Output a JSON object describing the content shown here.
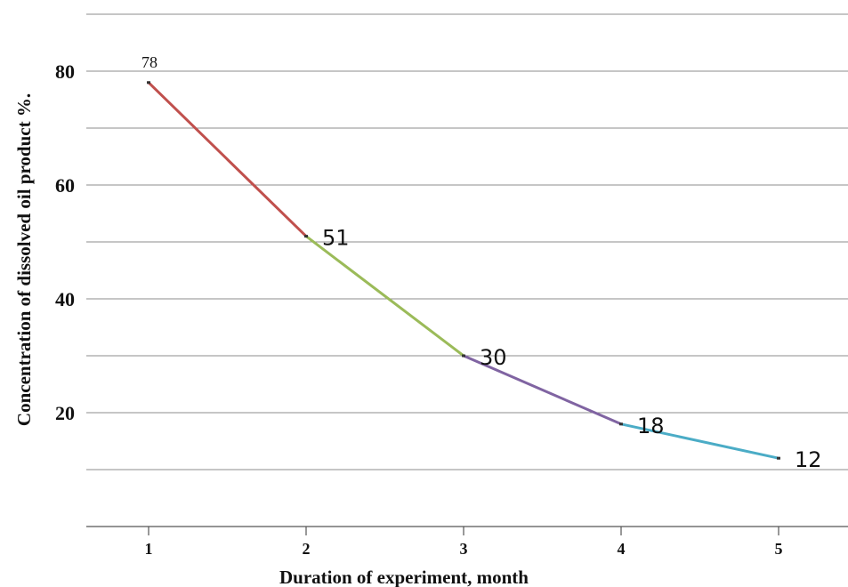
{
  "chart_data": {
    "type": "line",
    "x": [
      1,
      2,
      3,
      4,
      5
    ],
    "values": [
      78,
      51,
      30,
      18,
      12
    ],
    "data_labels": [
      "78",
      "51",
      "30",
      "18",
      "12"
    ],
    "segment_colors": [
      "#c0504d",
      "#9bbb59",
      "#8064a2",
      "#4bacc6"
    ],
    "xlabel": "Duration of experiment, month",
    "ylabel": "Concentration of dissolved oil product %.",
    "x_tick_labels": [
      "1",
      "2",
      "3",
      "4",
      "5"
    ],
    "y_tick_labels": [
      "20",
      "40",
      "60",
      "80"
    ],
    "y_ticks": [
      20,
      40,
      60,
      80
    ],
    "grid_lines": [
      0,
      10,
      20,
      30,
      40,
      50,
      60,
      70,
      80,
      90
    ],
    "ylim": [
      0,
      90
    ],
    "xlim": [
      0.625,
      5.5
    ],
    "grid": true,
    "legend": "none"
  }
}
